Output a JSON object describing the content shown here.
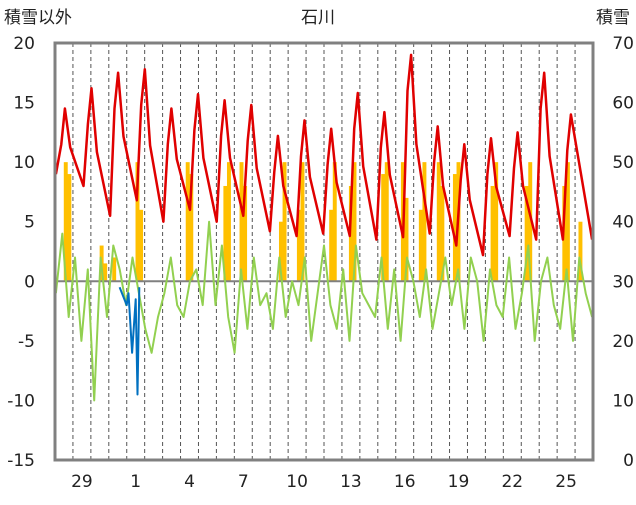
{
  "chart_data": {
    "type": "line",
    "title": "石川",
    "y_left_label": "積雪以外",
    "y_right_label": "積雪",
    "y_left_range": [
      -15,
      20
    ],
    "y_left_ticks": [
      "20",
      "15",
      "10",
      "5",
      "0",
      "-5",
      "-10",
      "-15"
    ],
    "y_right_range": [
      0,
      70
    ],
    "y_right_ticks": [
      "70",
      "60",
      "50",
      "40",
      "30",
      "20",
      "10",
      "0"
    ],
    "x_range": [
      0,
      30
    ],
    "x_ticks": [
      {
        "pos": 1.5,
        "label": "29"
      },
      {
        "pos": 4.5,
        "label": "1"
      },
      {
        "pos": 7.5,
        "label": "4"
      },
      {
        "pos": 10.5,
        "label": "7"
      },
      {
        "pos": 13.5,
        "label": "10"
      },
      {
        "pos": 16.5,
        "label": "13"
      },
      {
        "pos": 19.5,
        "label": "16"
      },
      {
        "pos": 22.5,
        "label": "19"
      },
      {
        "pos": 25.5,
        "label": "22"
      },
      {
        "pos": 28.5,
        "label": "25"
      }
    ],
    "grid": "vertical dashed, daily",
    "colors": {
      "max_temp": "#e00000",
      "min_temp": "#0070c0",
      "precip": "#ffc000",
      "diff": "#92d050",
      "snow_depth": "#7030a0",
      "frame": "#808080"
    },
    "series": [
      {
        "key": "max_temp",
        "name": "",
        "axis": "left",
        "peaks": [
          14.5,
          16.2,
          17.5,
          17.8,
          14.5,
          15.7,
          15.2,
          14.8,
          12.2,
          13.5,
          12.8,
          15.8,
          14.2,
          19.0,
          13.0,
          11.5,
          12.0,
          12.5,
          17.5,
          14.0
        ],
        "troughs": [
          8.0,
          5.5,
          6.8,
          5.0,
          6.0,
          5.0,
          5.5,
          4.2,
          3.8,
          4.0,
          3.8,
          3.5,
          3.7,
          4.0,
          3.0,
          2.2,
          3.8,
          3.5,
          3.5
        ]
      },
      {
        "key": "min_temp",
        "name": "",
        "axis": "left",
        "segment_x": [
          3.6,
          4.0,
          4.1,
          4.3,
          4.5,
          4.6,
          4.7
        ],
        "segment_y": [
          -0.5,
          -2.0,
          -1.0,
          -6.0,
          -1.5,
          -9.5,
          -0.5
        ]
      },
      {
        "key": "precip",
        "name": "",
        "axis": "left",
        "bars": [
          [
            0.6,
            10
          ],
          [
            0.8,
            9
          ],
          [
            2.6,
            3
          ],
          [
            2.8,
            1.5
          ],
          [
            3.3,
            2
          ],
          [
            4.6,
            10
          ],
          [
            4.8,
            6
          ],
          [
            7.4,
            10
          ],
          [
            7.6,
            9
          ],
          [
            9.5,
            8
          ],
          [
            9.7,
            10
          ],
          [
            10.4,
            10
          ],
          [
            10.6,
            8
          ],
          [
            12.6,
            5
          ],
          [
            12.8,
            10
          ],
          [
            13.6,
            6
          ],
          [
            13.8,
            10
          ],
          [
            15.4,
            6
          ],
          [
            15.6,
            10
          ],
          [
            16.5,
            8
          ],
          [
            16.7,
            10
          ],
          [
            18.3,
            9
          ],
          [
            18.5,
            10
          ],
          [
            19.4,
            10
          ],
          [
            19.6,
            7
          ],
          [
            20.4,
            6
          ],
          [
            20.6,
            10
          ],
          [
            21.4,
            10
          ],
          [
            21.6,
            8
          ],
          [
            22.3,
            9
          ],
          [
            22.5,
            10
          ],
          [
            24.4,
            8
          ],
          [
            24.6,
            10
          ],
          [
            26.3,
            8
          ],
          [
            26.5,
            10
          ],
          [
            28.4,
            8
          ],
          [
            28.6,
            10
          ],
          [
            29.3,
            5
          ]
        ]
      },
      {
        "key": "diff",
        "name": "",
        "axis": "left",
        "values": [
          -1,
          4,
          -3,
          2,
          -5,
          1,
          -10,
          2,
          -3,
          3,
          1,
          -2,
          2,
          -1,
          -4,
          -6,
          -3,
          -1,
          2,
          -2,
          -3,
          0,
          1,
          -2,
          5,
          -2,
          3,
          -3,
          -6,
          1,
          -4,
          2,
          -2,
          -1,
          -4,
          2,
          -3,
          0,
          -2,
          2,
          -5,
          -1,
          3,
          -2,
          -4,
          1,
          -5,
          3,
          -1,
          -2,
          -3,
          2,
          -4,
          1,
          -5,
          2,
          0,
          -3,
          1,
          -4,
          -1,
          2,
          -2,
          1,
          -4,
          2,
          0,
          -5,
          1,
          -2,
          -3,
          2,
          -4,
          -1,
          3,
          -5,
          0,
          2,
          -2,
          -4,
          1,
          -5,
          2,
          -1,
          -3
        ]
      },
      {
        "key": "snow_depth",
        "name": "",
        "axis": "right",
        "values": [
          0,
          0
        ]
      }
    ]
  }
}
